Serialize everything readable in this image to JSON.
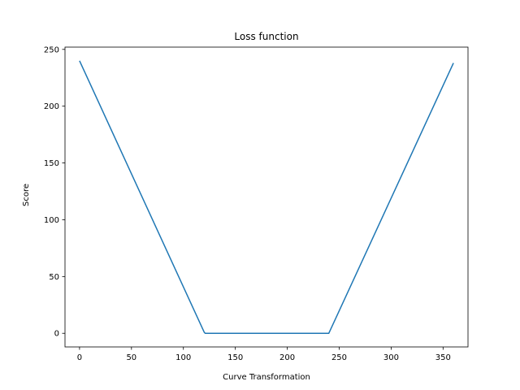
{
  "chart_data": {
    "type": "line",
    "title": "Loss function",
    "xlabel": "Curve Transformation",
    "ylabel": "Score",
    "xlim": [
      -14,
      374
    ],
    "ylim": [
      -12,
      252
    ],
    "xticks": [
      0,
      50,
      100,
      150,
      200,
      250,
      300,
      350
    ],
    "yticks": [
      0,
      50,
      100,
      150,
      200,
      250
    ],
    "grid": false,
    "line_color": "#1f77b4",
    "series": [
      {
        "x": [
          0,
          120,
          121,
          240,
          360
        ],
        "y": [
          240,
          1,
          0,
          0,
          238
        ]
      }
    ]
  }
}
